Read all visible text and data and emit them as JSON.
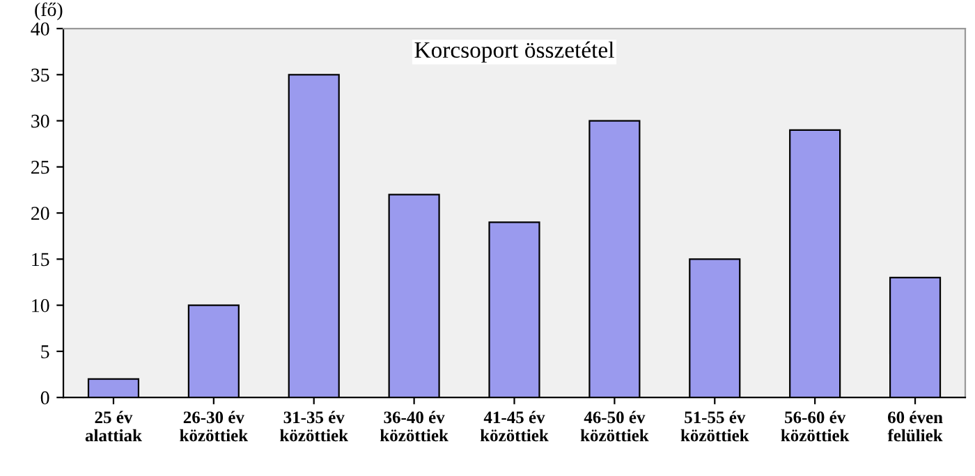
{
  "chart_data": {
    "type": "bar",
    "title": "Korcsoport összetétel",
    "ylabel": "(fő)",
    "categories": [
      "25 év\nalattiak",
      "26-30 év\nközöttiek",
      "31-35 év\nközöttiek",
      "36-40 év\nközöttiek",
      "41-45 év\nközöttiek",
      "46-50 év\nközöttiek",
      "51-55 év\nközöttiek",
      "56-60 év\nközöttiek",
      "60 éven\nfelüliek"
    ],
    "values": [
      2,
      10,
      35,
      22,
      19,
      30,
      15,
      29,
      13
    ],
    "color": "#9a9aee",
    "ylim": [
      0,
      40
    ],
    "yticks": [
      0,
      5,
      10,
      15,
      20,
      25,
      30,
      35,
      40
    ],
    "grid": false
  }
}
